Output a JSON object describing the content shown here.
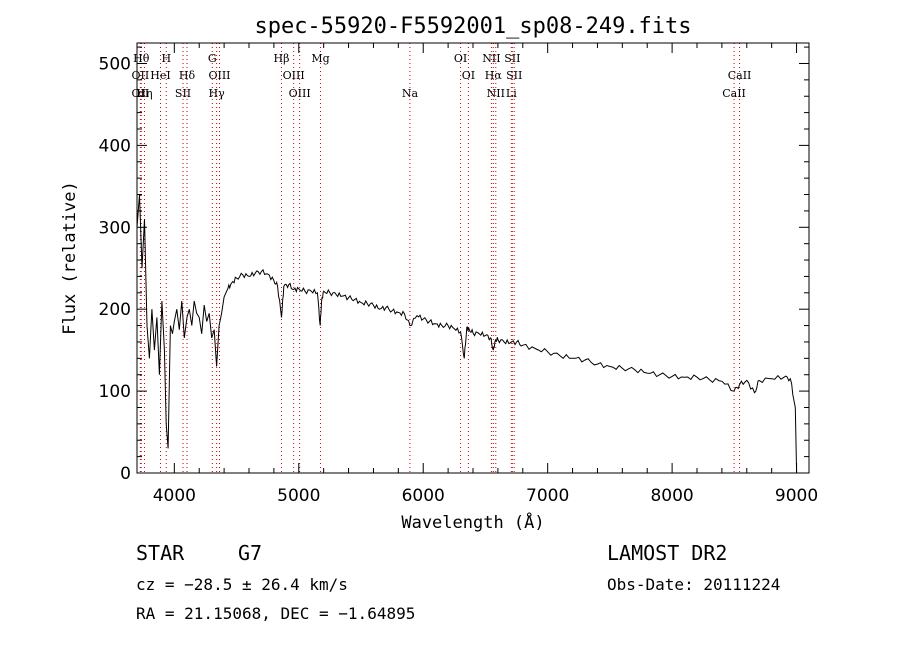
{
  "chart_data": {
    "type": "line",
    "title": "spec-55920-F5592001_sp08-249.fits",
    "xlabel": "Wavelength (Å)",
    "ylabel": "Flux (relative)",
    "xlim": [
      3700,
      9100
    ],
    "ylim": [
      0,
      525
    ],
    "xticks": [
      4000,
      5000,
      6000,
      7000,
      8000,
      9000
    ],
    "yticks": [
      0,
      100,
      200,
      300,
      400,
      500
    ],
    "grid": false,
    "series": [
      {
        "x": [
          3700,
          3720,
          3740,
          3760,
          3780,
          3800,
          3820,
          3840,
          3860,
          3880,
          3900,
          3920,
          3935,
          3950,
          3968,
          3985,
          4000,
          4020,
          4040,
          4060,
          4080,
          4102,
          4120,
          4140,
          4160,
          4180,
          4200,
          4220,
          4240,
          4260,
          4280,
          4300,
          4320,
          4340,
          4360,
          4380,
          4400,
          4430,
          4460,
          4500,
          4550,
          4600,
          4650,
          4700,
          4750,
          4800,
          4830,
          4861,
          4880,
          4920,
          4960,
          5000,
          5050,
          5100,
          5150,
          5172,
          5183,
          5200,
          5250,
          5300,
          5350,
          5400,
          5450,
          5500,
          5550,
          5600,
          5650,
          5700,
          5750,
          5800,
          5850,
          5893,
          5950,
          6000,
          6050,
          6100,
          6150,
          6200,
          6250,
          6300,
          6330,
          6350,
          6370,
          6400,
          6450,
          6500,
          6540,
          6563,
          6580,
          6600,
          6650,
          6700,
          6750,
          6800,
          6900,
          7000,
          7100,
          7200,
          7300,
          7400,
          7500,
          7600,
          7700,
          7800,
          7900,
          8000,
          8100,
          8200,
          8300,
          8400,
          8498,
          8542,
          8600,
          8662,
          8700,
          8800,
          8900,
          8950,
          8990,
          9000
        ],
        "y": [
          300,
          340,
          250,
          310,
          180,
          140,
          200,
          150,
          190,
          120,
          210,
          150,
          60,
          30,
          180,
          170,
          185,
          200,
          175,
          210,
          165,
          190,
          200,
          180,
          210,
          195,
          190,
          170,
          205,
          185,
          195,
          165,
          175,
          130,
          180,
          195,
          215,
          225,
          232,
          238,
          242,
          240,
          244,
          246,
          243,
          235,
          228,
          190,
          228,
          230,
          224,
          225,
          222,
          222,
          220,
          180,
          210,
          222,
          220,
          218,
          216,
          214,
          212,
          208,
          207,
          205,
          200,
          202,
          198,
          196,
          194,
          180,
          192,
          188,
          185,
          182,
          180,
          180,
          176,
          172,
          140,
          178,
          175,
          171,
          170,
          168,
          165,
          150,
          162,
          163,
          160,
          159,
          160,
          156,
          152,
          148,
          143,
          140,
          138,
          133,
          130,
          128,
          126,
          122,
          120,
          118,
          117,
          117,
          114,
          112,
          100,
          108,
          113,
          98,
          113,
          115,
          117,
          115,
          80,
          0
        ]
      }
    ]
  },
  "spectral_lines": [
    {
      "x": 3734,
      "label": "Hθ",
      "row": 1
    },
    {
      "x": 3727,
      "label": "OII",
      "row": 2
    },
    {
      "x": 3727,
      "label": "OII",
      "row": 3
    },
    {
      "x": 3760,
      "label": "Hη",
      "row": 3
    },
    {
      "x": 3889,
      "label": "HeI",
      "row": 2
    },
    {
      "x": 3935,
      "label": "H",
      "row": 1
    },
    {
      "x": 4102,
      "label": "Hδ",
      "row": 2
    },
    {
      "x": 4070,
      "label": "SII",
      "row": 3
    },
    {
      "x": 4305,
      "label": "G",
      "row": 1
    },
    {
      "x": 4363,
      "label": "OIII",
      "row": 2
    },
    {
      "x": 4340,
      "label": "Hγ",
      "row": 3
    },
    {
      "x": 4861,
      "label": "Hβ",
      "row": 1
    },
    {
      "x": 4959,
      "label": "OIII",
      "row": 2
    },
    {
      "x": 5007,
      "label": "OIII",
      "row": 3
    },
    {
      "x": 5175,
      "label": "Mg",
      "row": 1
    },
    {
      "x": 5893,
      "label": "Na",
      "row": 3
    },
    {
      "x": 6300,
      "label": "OI",
      "row": 1
    },
    {
      "x": 6363,
      "label": "OI",
      "row": 2
    },
    {
      "x": 6548,
      "label": "NII",
      "row": 1
    },
    {
      "x": 6563,
      "label": "Hα",
      "row": 2
    },
    {
      "x": 6583,
      "label": "NII",
      "row": 3
    },
    {
      "x": 6716,
      "label": "SII",
      "row": 1
    },
    {
      "x": 6731,
      "label": "SII",
      "row": 2
    },
    {
      "x": 6708,
      "label": "Li",
      "row": 3
    },
    {
      "x": 8542,
      "label": "CaII",
      "row": 2
    },
    {
      "x": 8498,
      "label": "CaII",
      "row": 3
    }
  ],
  "info": {
    "object_class": "STAR",
    "subclass": "G7",
    "survey": "LAMOST DR2",
    "cz": "cz = −28.5 ± 26.4 km/s",
    "obs_date": "Obs-Date: 20111224",
    "coords": "RA =  21.15068, DEC =  −1.64895"
  },
  "colors": {
    "spectrum": "#000000",
    "line_markers": "#cc0000",
    "axes": "#000000"
  }
}
